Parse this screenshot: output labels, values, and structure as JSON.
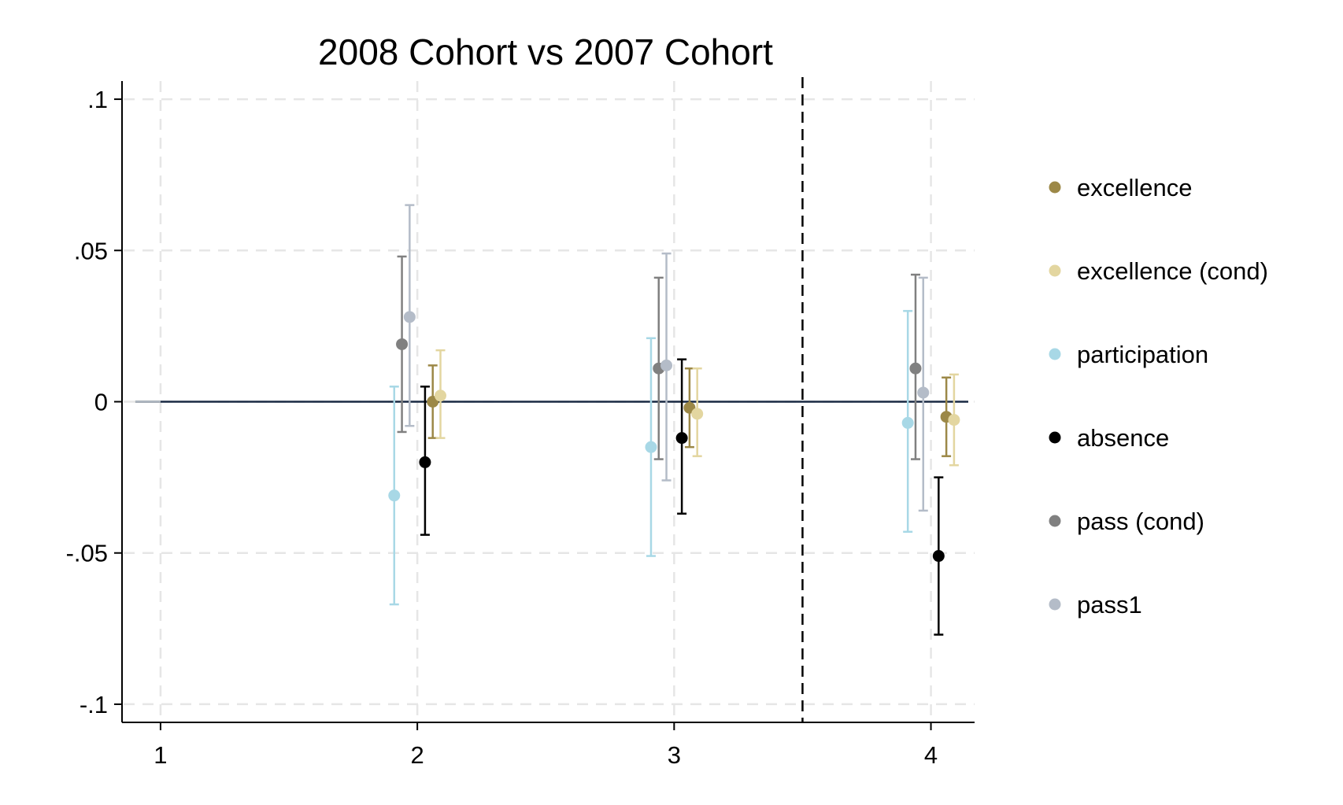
{
  "chart_data": {
    "type": "scatter",
    "title": "2008 Cohort vs 2007 Cohort",
    "xlabel": "",
    "ylabel": "",
    "x_ticks": [
      "1",
      "2",
      "3",
      "4"
    ],
    "y_ticks": [
      {
        "value": 0.1,
        "label": ".1"
      },
      {
        "value": 0.05,
        "label": ".05"
      },
      {
        "value": 0,
        "label": "0"
      },
      {
        "value": -0.05,
        "label": "-.05"
      },
      {
        "value": -0.1,
        "label": "-.1"
      }
    ],
    "xlim": [
      0.85,
      4.17
    ],
    "ylim": [
      -0.106,
      0.106
    ],
    "grid": true,
    "legend_position": "right",
    "reference_lines": {
      "horizontal_y": 0,
      "vertical_x": 3.5
    },
    "series": [
      {
        "name": "excellence",
        "color": "#9c8847",
        "points": [
          {
            "x": 1,
            "y": 0,
            "lo": 0,
            "hi": 0
          },
          {
            "x": 2,
            "y": 0.0,
            "lo": -0.012,
            "hi": 0.012
          },
          {
            "x": 3,
            "y": -0.002,
            "lo": -0.015,
            "hi": 0.011
          },
          {
            "x": 4,
            "y": -0.005,
            "lo": -0.018,
            "hi": 0.008
          }
        ]
      },
      {
        "name": "excellence (cond)",
        "color": "#e3d6a0",
        "points": [
          {
            "x": 1,
            "y": 0,
            "lo": 0,
            "hi": 0
          },
          {
            "x": 2,
            "y": 0.002,
            "lo": -0.012,
            "hi": 0.017
          },
          {
            "x": 3,
            "y": -0.004,
            "lo": -0.018,
            "hi": 0.011
          },
          {
            "x": 4,
            "y": -0.006,
            "lo": -0.021,
            "hi": 0.009
          }
        ]
      },
      {
        "name": "participation",
        "color": "#a8d8e6",
        "points": [
          {
            "x": 1,
            "y": 0,
            "lo": 0,
            "hi": 0
          },
          {
            "x": 2,
            "y": -0.031,
            "lo": -0.067,
            "hi": 0.005
          },
          {
            "x": 3,
            "y": -0.015,
            "lo": -0.051,
            "hi": 0.021
          },
          {
            "x": 4,
            "y": -0.007,
            "lo": -0.043,
            "hi": 0.03
          }
        ]
      },
      {
        "name": "absence",
        "color": "#000000",
        "points": [
          {
            "x": 1,
            "y": 0,
            "lo": 0,
            "hi": 0
          },
          {
            "x": 2,
            "y": -0.02,
            "lo": -0.044,
            "hi": 0.005
          },
          {
            "x": 3,
            "y": -0.012,
            "lo": -0.037,
            "hi": 0.014
          },
          {
            "x": 4,
            "y": -0.051,
            "lo": -0.077,
            "hi": -0.025
          }
        ]
      },
      {
        "name": "pass (cond)",
        "color": "#808080",
        "points": [
          {
            "x": 1,
            "y": 0,
            "lo": 0,
            "hi": 0
          },
          {
            "x": 2,
            "y": 0.019,
            "lo": -0.01,
            "hi": 0.048
          },
          {
            "x": 3,
            "y": 0.011,
            "lo": -0.019,
            "hi": 0.041
          },
          {
            "x": 4,
            "y": 0.011,
            "lo": -0.019,
            "hi": 0.042
          }
        ]
      },
      {
        "name": "pass1",
        "color": "#b4bcc8",
        "points": [
          {
            "x": 1,
            "y": 0,
            "lo": 0,
            "hi": 0
          },
          {
            "x": 2,
            "y": 0.028,
            "lo": -0.008,
            "hi": 0.065
          },
          {
            "x": 3,
            "y": 0.012,
            "lo": -0.026,
            "hi": 0.049
          },
          {
            "x": 4,
            "y": 0.003,
            "lo": -0.036,
            "hi": 0.041
          }
        ]
      }
    ]
  }
}
